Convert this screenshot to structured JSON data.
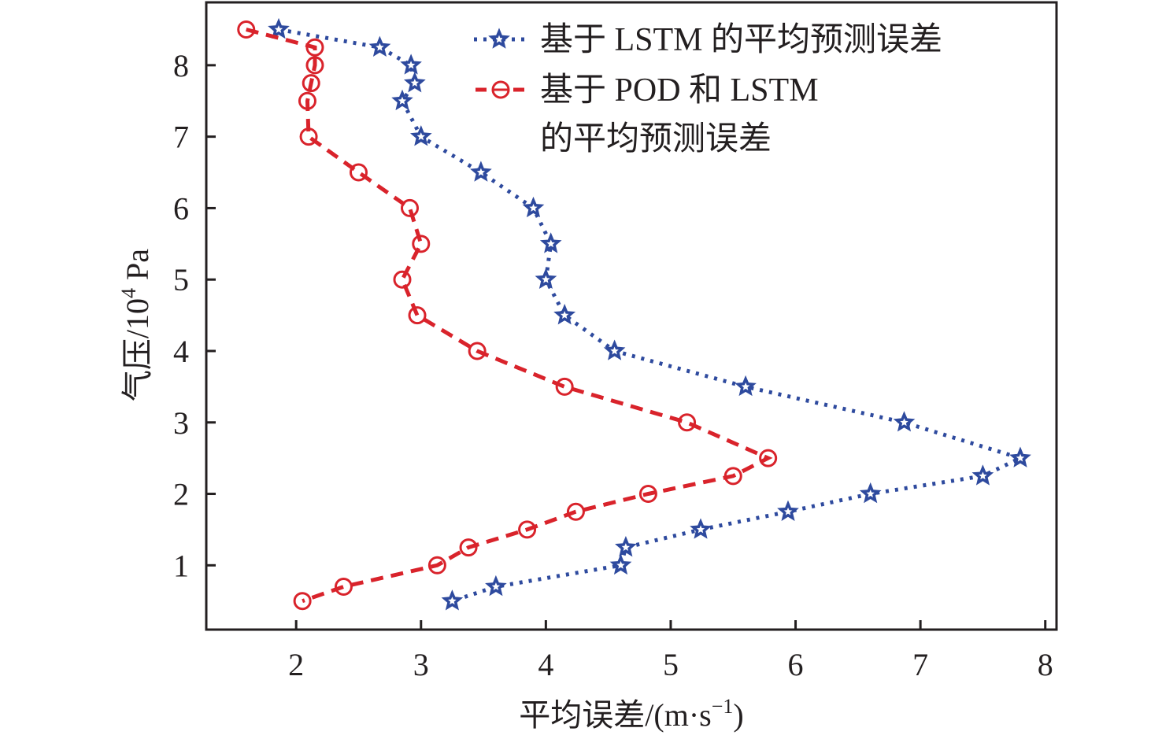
{
  "chart_data": {
    "type": "line",
    "title": "",
    "xlabel": "平均误差/(m·s⁻¹)",
    "ylabel": "气压/10⁴ Pa",
    "xlim": [
      1.28,
      8.09
    ],
    "ylim": [
      0.1,
      8.88
    ],
    "xticks": [
      2,
      3,
      4,
      5,
      6,
      7,
      8
    ],
    "yticks": [
      1,
      2,
      3,
      4,
      5,
      6,
      7,
      8
    ],
    "grid": false,
    "legend_position": "top-right",
    "series": [
      {
        "name": "基于 LSTM 的平均预测误差",
        "color": "#2e4a9e",
        "line_style": "dotted",
        "marker": "star",
        "x": [
          1.86,
          2.67,
          2.92,
          2.95,
          2.85,
          3.0,
          3.48,
          3.9,
          4.04,
          4.0,
          4.15,
          4.55,
          5.6,
          6.87,
          7.8,
          7.5,
          6.6,
          5.94,
          5.24,
          4.64,
          4.6,
          3.6,
          3.25
        ],
        "y": [
          8.5,
          8.25,
          8.0,
          7.75,
          7.5,
          7.0,
          6.5,
          6.0,
          5.5,
          5.0,
          4.5,
          4.0,
          3.5,
          3.0,
          2.5,
          2.25,
          2.0,
          1.75,
          1.5,
          1.25,
          1.0,
          0.7,
          0.5
        ]
      },
      {
        "name": "基于 POD 和 LSTM 的平均预测误差",
        "legend_lines": [
          "基于 POD 和 LSTM",
          "的平均预测误差"
        ],
        "color": "#d9232b",
        "line_style": "dashed",
        "marker": "circle",
        "x": [
          1.6,
          2.15,
          2.15,
          2.12,
          2.09,
          2.1,
          2.5,
          2.91,
          3.0,
          2.85,
          2.97,
          3.45,
          4.15,
          5.13,
          5.78,
          5.5,
          4.82,
          4.24,
          3.85,
          3.38,
          3.13,
          2.38,
          2.05
        ],
        "y": [
          8.5,
          8.25,
          8.0,
          7.75,
          7.5,
          7.0,
          6.5,
          6.0,
          5.5,
          5.0,
          4.5,
          4.0,
          3.5,
          3.0,
          2.5,
          2.25,
          2.0,
          1.75,
          1.5,
          1.25,
          1.0,
          0.7,
          0.5
        ]
      }
    ]
  },
  "labels": {
    "xlabel_main": "平均误差/(m·s",
    "xlabel_sup": "−1",
    "xlabel_end": ")",
    "ylabel_main": "气压/10",
    "ylabel_sup": "4",
    "ylabel_end": " Pa",
    "legend_1": "基于 LSTM 的平均预测误差",
    "legend_2a": "基于 POD 和 LSTM",
    "legend_2b": "的平均预测误差"
  }
}
